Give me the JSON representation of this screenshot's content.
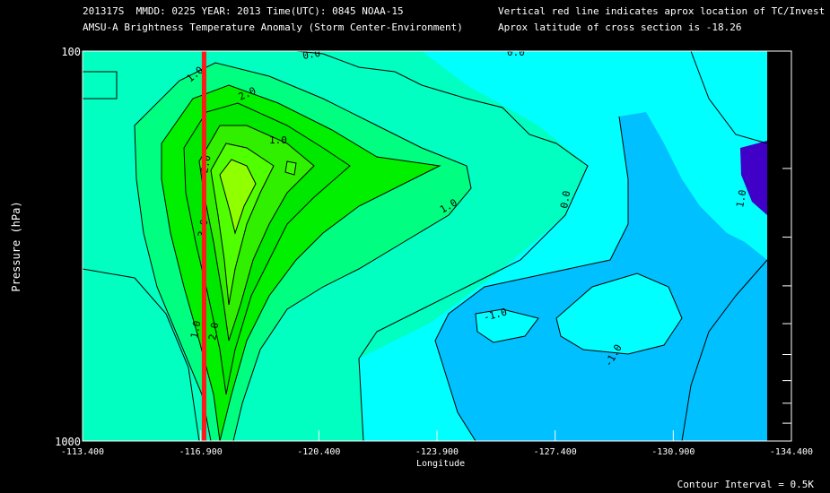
{
  "header": {
    "line1": "201317S  MMDD: 0225 YEAR: 2013 Time(UTC): 0845 NOAA-15",
    "line2": "AMSU-A Brightness Temperature Anomaly (Storm Center-Environment)",
    "line3": "Vertical red line indicates aprox location of TC/Invest",
    "line4": "Aprox latitude of cross section is -18.26"
  },
  "footer": {
    "contour_interval": "Contour Interval = 0.5K"
  },
  "chart_data": {
    "type": "heatmap",
    "ylabel": "Pressure (hPa)",
    "xlabel": "Longitude",
    "x_ticks": [
      "-113.400",
      "-116.900",
      "-120.400",
      "-123.900",
      "-127.400",
      "-130.900",
      "-134.400"
    ],
    "y_ticks": [
      "100",
      "1000"
    ],
    "ylim": [
      100,
      1000
    ],
    "xlim": [
      -113.4,
      -134.4
    ],
    "y_scale": "log",
    "contour_labels": [
      "0.0",
      "1.0",
      "2.0",
      "-2.0",
      "3.0",
      "1.0",
      "0.0",
      "1.0",
      "-1.0",
      "-1.0",
      "1.0",
      "2.0",
      "1.0",
      "0.0"
    ],
    "storm_longitude": -117.0,
    "storm_line_color": "#ff1a1a",
    "colors": {
      "below_-1.5": "#4000c8",
      "-1.0_to_-0.5": "#00c0ff",
      "-0.5_to_0": "#00ffff",
      "0_to_0.5": "#00ffc0",
      "0.5_to_1.5": "#00ff80",
      "1.5_to_2.5": "#00f000",
      "2.5_to_3.5": "#40ff00",
      "peak": "#90ff00"
    }
  }
}
